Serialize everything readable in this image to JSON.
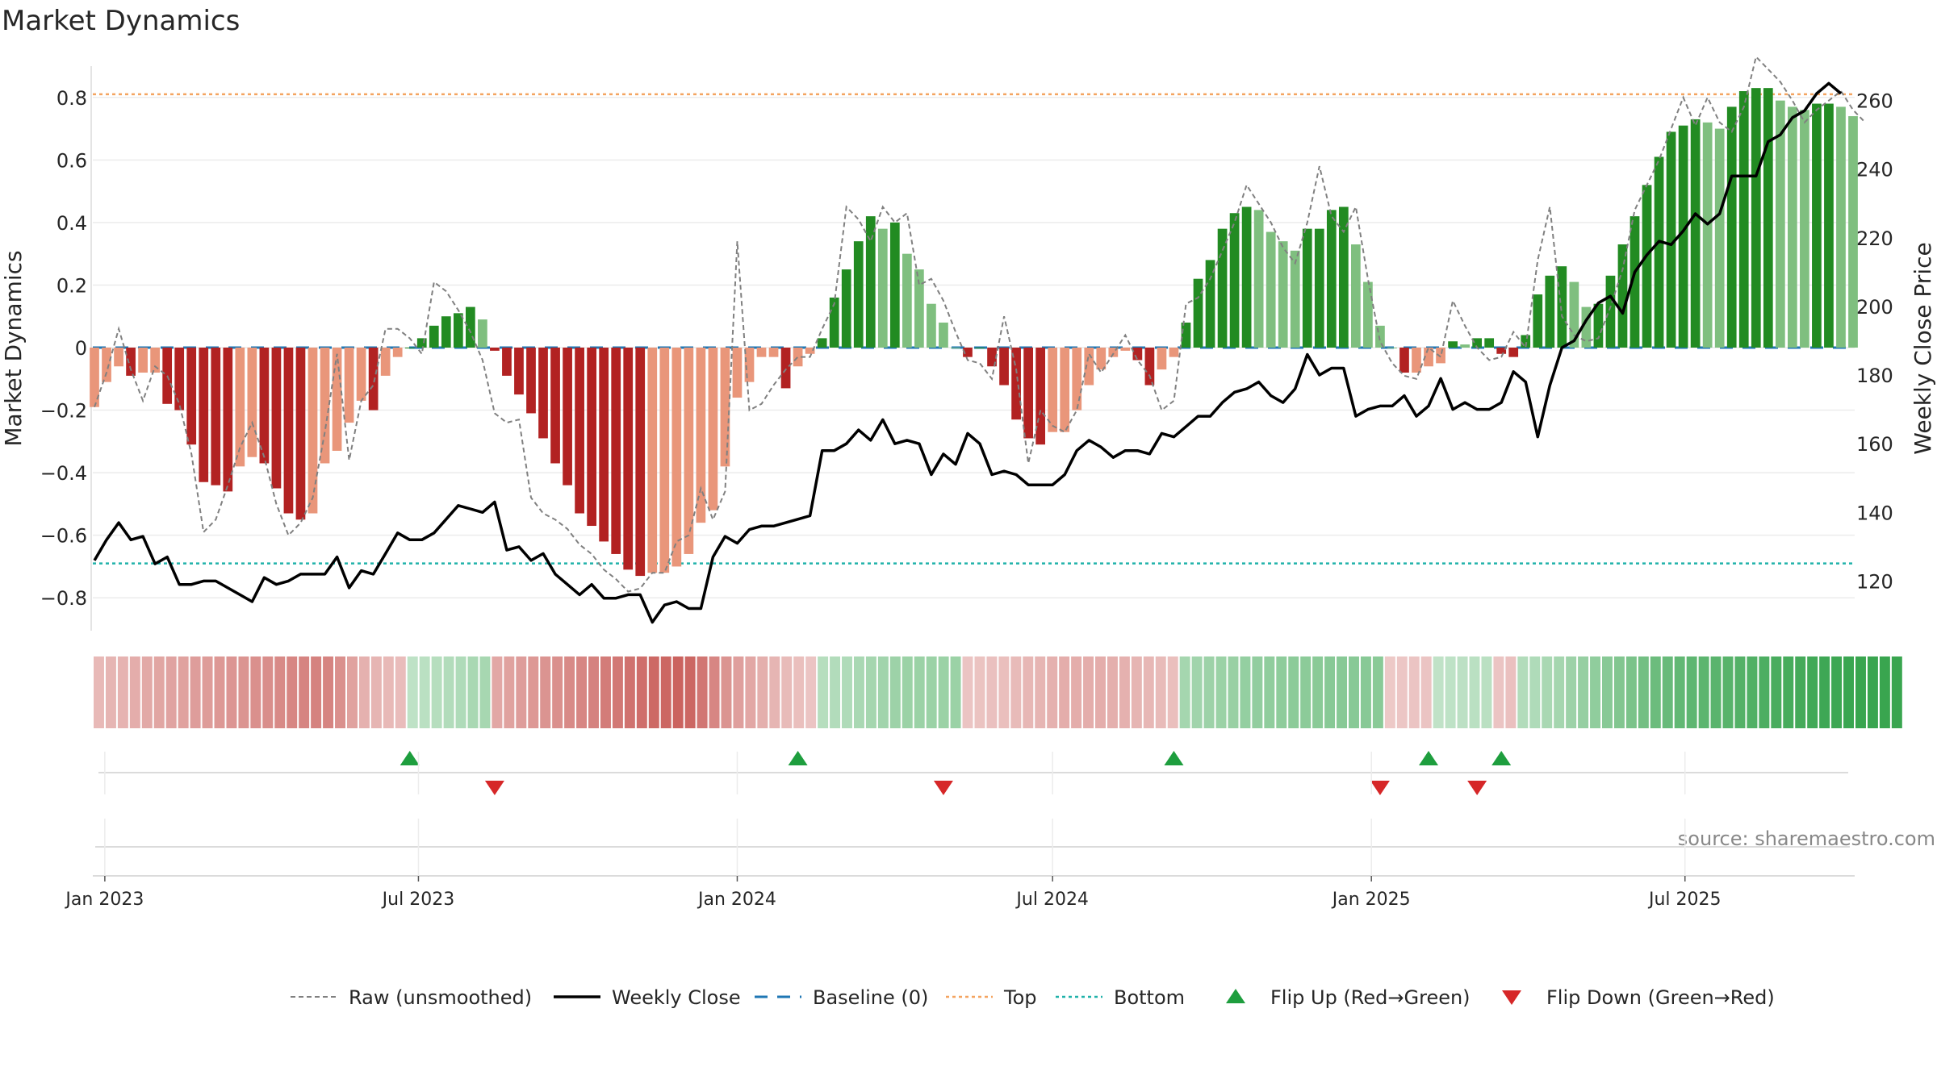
{
  "chart_data": {
    "type": "bar",
    "title": "Market Dynamics",
    "ylabel": "Market Dynamics",
    "y2label": "Weekly Close Price",
    "source": "source: sharemaestro.com",
    "ylim": [
      -0.9,
      0.9
    ],
    "y2lim": [
      106,
      270
    ],
    "yticks": [
      "0.8",
      "0.6",
      "0.4",
      "0.2",
      "0",
      "−0.2",
      "−0.4",
      "−0.6",
      "−0.8"
    ],
    "y2ticks": [
      "260",
      "240",
      "220",
      "200",
      "180",
      "160",
      "140",
      "120"
    ],
    "x_start": "2022-12-26",
    "xticks": [
      "Jan 2023",
      "Jul 2023",
      "Jan 2024",
      "Jul 2024",
      "Jan 2025",
      "Jul 2025"
    ],
    "levels": {
      "top": 0.81,
      "bottom": -0.69,
      "baseline": 0
    },
    "colors": {
      "neg_strong": "#b22222",
      "neg_weak": "#e9967a",
      "pos_strong": "#228b22",
      "pos_weak": "#7fbf7f",
      "top_line": "#f4a460",
      "bottom_line": "#20b2aa",
      "baseline": "#1f77b4",
      "close_line": "#000000",
      "raw_line": "#808080",
      "flip_up": "#1e9e3e",
      "flip_down": "#d62728"
    },
    "dynamics": [
      -0.19,
      -0.11,
      -0.06,
      -0.09,
      -0.08,
      -0.08,
      -0.18,
      -0.2,
      -0.31,
      -0.43,
      -0.44,
      -0.46,
      -0.38,
      -0.35,
      -0.37,
      -0.45,
      -0.53,
      -0.55,
      -0.53,
      -0.37,
      -0.33,
      -0.24,
      -0.17,
      -0.2,
      -0.09,
      -0.03,
      0.0,
      0.03,
      0.07,
      0.1,
      0.11,
      0.13,
      0.09,
      -0.01,
      -0.09,
      -0.15,
      -0.21,
      -0.29,
      -0.37,
      -0.44,
      -0.53,
      -0.57,
      -0.62,
      -0.66,
      -0.71,
      -0.73,
      -0.72,
      -0.72,
      -0.7,
      -0.66,
      -0.56,
      -0.52,
      -0.38,
      -0.16,
      -0.11,
      -0.03,
      -0.03,
      -0.13,
      -0.06,
      -0.02,
      0.03,
      0.16,
      0.25,
      0.34,
      0.42,
      0.38,
      0.4,
      0.3,
      0.25,
      0.14,
      0.08,
      0.0,
      -0.03,
      0.0,
      -0.06,
      -0.12,
      -0.23,
      -0.29,
      -0.31,
      -0.27,
      -0.27,
      -0.2,
      -0.12,
      -0.07,
      -0.03,
      -0.01,
      -0.04,
      -0.12,
      -0.07,
      -0.03,
      0.08,
      0.22,
      0.28,
      0.38,
      0.43,
      0.45,
      0.44,
      0.37,
      0.34,
      0.31,
      0.38,
      0.38,
      0.44,
      0.45,
      0.33,
      0.21,
      0.07,
      0.0,
      -0.08,
      -0.08,
      -0.06,
      -0.05,
      0.02,
      0.01,
      0.03,
      0.03,
      -0.02,
      -0.03,
      0.04,
      0.17,
      0.23,
      0.26,
      0.21,
      0.13,
      0.14,
      0.23,
      0.33,
      0.42,
      0.52,
      0.61,
      0.69,
      0.71,
      0.73,
      0.72,
      0.7,
      0.77,
      0.82,
      0.83,
      0.83,
      0.79,
      0.77,
      0.76,
      0.78,
      0.78,
      0.77,
      0.74
    ],
    "weekly_close": [
      126,
      132,
      137,
      132,
      133,
      125,
      127,
      119,
      119,
      120,
      120,
      118,
      116,
      114,
      121,
      119,
      120,
      122,
      122,
      122,
      127,
      118,
      123,
      122,
      128,
      134,
      132,
      132,
      134,
      138,
      142,
      141,
      140,
      143,
      129,
      130,
      126,
      128,
      122,
      119,
      116,
      119,
      115,
      115,
      116,
      116,
      108,
      113,
      114,
      112,
      112,
      127,
      133,
      131,
      135,
      136,
      136,
      137,
      138,
      139,
      158,
      158,
      160,
      164,
      161,
      167,
      160,
      161,
      160,
      151,
      157,
      154,
      163,
      160,
      151,
      152,
      151,
      148,
      148,
      148,
      151,
      158,
      161,
      159,
      156,
      158,
      158,
      157,
      163,
      162,
      165,
      168,
      168,
      172,
      175,
      176,
      178,
      174,
      172,
      176,
      186,
      180,
      182,
      182,
      168,
      170,
      171,
      171,
      174,
      168,
      171,
      179,
      170,
      172,
      170,
      170,
      172,
      181,
      178,
      162,
      177,
      188,
      190,
      196,
      201,
      203,
      198,
      210,
      215,
      219,
      218,
      222,
      227,
      224,
      227,
      238,
      238,
      238,
      248,
      250,
      255,
      257,
      262,
      265,
      262
    ],
    "raw": [
      -0.19,
      -0.08,
      0.06,
      -0.07,
      -0.17,
      -0.06,
      -0.09,
      -0.18,
      -0.34,
      -0.59,
      -0.55,
      -0.44,
      -0.32,
      -0.24,
      -0.35,
      -0.5,
      -0.6,
      -0.56,
      -0.48,
      -0.27,
      -0.02,
      -0.36,
      -0.17,
      -0.12,
      0.06,
      0.06,
      0.03,
      -0.02,
      0.21,
      0.18,
      0.12,
      0.05,
      -0.04,
      -0.21,
      -0.24,
      -0.23,
      -0.48,
      -0.53,
      -0.55,
      -0.58,
      -0.63,
      -0.66,
      -0.71,
      -0.74,
      -0.78,
      -0.77,
      -0.72,
      -0.72,
      -0.62,
      -0.6,
      -0.45,
      -0.55,
      -0.46,
      0.34,
      -0.2,
      -0.18,
      -0.12,
      -0.07,
      -0.03,
      -0.03,
      0.06,
      0.14,
      0.45,
      0.41,
      0.34,
      0.45,
      0.4,
      0.43,
      0.2,
      0.22,
      0.15,
      0.05,
      -0.04,
      -0.05,
      -0.1,
      0.1,
      -0.07,
      -0.37,
      -0.2,
      -0.25,
      -0.27,
      -0.2,
      -0.02,
      -0.08,
      -0.02,
      0.04,
      -0.04,
      -0.09,
      -0.2,
      -0.17,
      0.14,
      0.16,
      0.22,
      0.31,
      0.4,
      0.52,
      0.46,
      0.4,
      0.32,
      0.27,
      0.4,
      0.58,
      0.42,
      0.37,
      0.45,
      0.22,
      0.02,
      -0.05,
      -0.09,
      -0.1,
      0.0,
      -0.03,
      0.15,
      0.07,
      0.0,
      -0.04,
      -0.03,
      0.05,
      0.0,
      0.28,
      0.45,
      0.1,
      0.04,
      0.02,
      0.03,
      0.13,
      0.25,
      0.44,
      0.52,
      0.6,
      0.7,
      0.8,
      0.71,
      0.8,
      0.72,
      0.69,
      0.77,
      0.93,
      0.89,
      0.85,
      0.79,
      0.72,
      0.76,
      0.79,
      0.82,
      0.76,
      0.72
    ],
    "strip": [
      -0.19,
      -0.22,
      -0.23,
      -0.26,
      -0.29,
      -0.31,
      -0.32,
      -0.34,
      -0.36,
      -0.37,
      -0.39,
      -0.41,
      -0.42,
      -0.44,
      -0.46,
      -0.48,
      -0.5,
      -0.52,
      -0.53,
      -0.52,
      -0.44,
      -0.34,
      -0.24,
      -0.22,
      -0.19,
      -0.17,
      0.13,
      0.16,
      0.18,
      0.2,
      0.22,
      0.25,
      0.27,
      -0.3,
      -0.33,
      -0.36,
      -0.39,
      -0.42,
      -0.45,
      -0.48,
      -0.5,
      -0.53,
      -0.56,
      -0.59,
      -0.62,
      -0.65,
      -0.68,
      -0.7,
      -0.72,
      -0.7,
      -0.6,
      -0.5,
      -0.42,
      -0.35,
      -0.3,
      -0.25,
      -0.21,
      -0.18,
      -0.15,
      -0.12,
      0.18,
      0.2,
      0.22,
      0.25,
      0.28,
      0.3,
      0.32,
      0.33,
      0.34,
      0.33,
      0.33,
      0.33,
      -0.12,
      -0.13,
      -0.14,
      -0.16,
      -0.18,
      -0.2,
      -0.22,
      -0.24,
      -0.26,
      -0.27,
      -0.27,
      -0.26,
      -0.25,
      -0.24,
      -0.22,
      -0.2,
      -0.18,
      -0.16,
      0.28,
      0.3,
      0.32,
      0.34,
      0.35,
      0.37,
      0.38,
      0.4,
      0.41,
      0.42,
      0.42,
      0.43,
      0.44,
      0.45,
      0.45,
      0.44,
      0.43,
      -0.1,
      -0.11,
      -0.12,
      -0.12,
      0.12,
      0.13,
      0.14,
      0.15,
      0.16,
      -0.12,
      -0.14,
      0.2,
      0.22,
      0.25,
      0.28,
      0.32,
      0.36,
      0.4,
      0.44,
      0.48,
      0.52,
      0.56,
      0.6,
      0.63,
      0.66,
      0.68,
      0.7,
      0.71,
      0.72,
      0.74,
      0.76,
      0.78,
      0.8,
      0.82,
      0.83,
      0.85,
      0.86,
      0.88,
      0.89,
      0.9,
      0.9,
      0.9,
      0.9
    ],
    "flip_up_weeks": [
      26,
      58,
      89,
      110,
      116
    ],
    "flip_down_weeks": [
      33,
      70,
      106,
      114
    ],
    "legend": [
      {
        "label": "Raw (unsmoothed)",
        "style": "dashed-gray"
      },
      {
        "label": "Weekly Close",
        "style": "solid-black"
      },
      {
        "label": "Baseline (0)",
        "style": "dashed-blue"
      },
      {
        "label": "Top",
        "style": "dotted-orange"
      },
      {
        "label": "Bottom",
        "style": "dotted-teal"
      },
      {
        "label": "Flip Up (Red→Green)",
        "style": "triangle-up-green"
      },
      {
        "label": "Flip Down (Green→Red)",
        "style": "triangle-down-red"
      }
    ]
  }
}
